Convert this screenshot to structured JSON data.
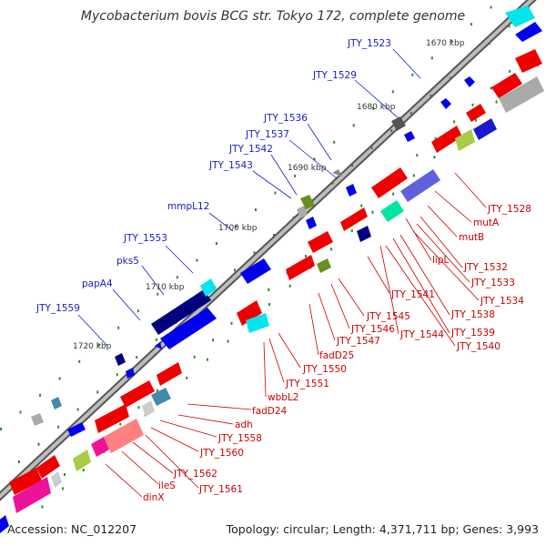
{
  "title": "Mycobacterium bovis BCG str. Tokyo 172, complete genome",
  "footer": {
    "accession": "Accession: NC_012207",
    "summary": "Topology: circular; Length: 4,371,711 bp; Genes: 3,993"
  },
  "colors": {
    "label_plus": "#1a1acc",
    "label_minus": "#cc0000",
    "backbone": "#999999",
    "tick": "#2e8b2e",
    "gene_plus": "#0000ee",
    "gene_minus": "#ee0000"
  },
  "scale_labels": [
    "1670 kbp",
    "1680 kbp",
    "1690 kbp",
    "1700 kbp",
    "1710 kbp",
    "1720 kbp"
  ],
  "plus_labels": [
    "JTY_1523",
    "JTY_1529",
    "JTY_1536",
    "JTY_1537",
    "JTY_1542",
    "JTY_1543",
    "mmpL12",
    "JTY_1553",
    "pks5",
    "papA4",
    "JTY_1559"
  ],
  "minus_labels": [
    "JTY_1528",
    "mutA",
    "mutB",
    "JTY_1532",
    "lipL",
    "JTY_1533",
    "JTY_1534",
    "JTY_1538",
    "JTY_1539",
    "JTY_1540",
    "JTY_1541",
    "JTY_1544",
    "JTY_1545",
    "JTY_1546",
    "JTY_1547",
    "fadD25",
    "JTY_1550",
    "JTY_1551",
    "wbbL2",
    "fadD24",
    "adh",
    "JTY_1558",
    "JTY_1560",
    "JTY_1562",
    "ileS",
    "JTY_1561",
    "dinX"
  ]
}
